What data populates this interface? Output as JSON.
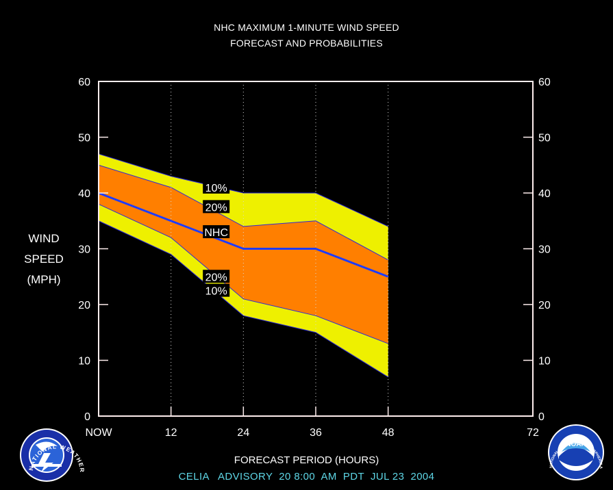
{
  "title_lines": [
    "NHC MAXIMUM 1-MINUTE WIND SPEED",
    "FORECAST AND PROBABILITIES"
  ],
  "ylabel_lines": [
    "WIND",
    "SPEED",
    "(MPH)"
  ],
  "xlabel": "FORECAST PERIOD (HOURS)",
  "advisory": "CELIA   ADVISORY  20 8:00  AM  PDT  JUL 23  2004",
  "logos": {
    "nws": {
      "text": "NATIONAL WEATHER SERVICE",
      "icon": "nws-logo"
    },
    "noaa": {
      "text": "NATIONAL OCEANIC AND ATMOSPHERIC ADMINISTRATION - U.S. DEPARTMENT OF COMMERCE",
      "label": "NOAA",
      "icon": "noaa-logo"
    }
  },
  "chart_data": {
    "type": "area",
    "x": [
      0,
      12,
      24,
      36,
      48
    ],
    "x_ticks": [
      0,
      12,
      24,
      36,
      48,
      72
    ],
    "x_tick_labels": [
      "NOW",
      "12",
      "24",
      "36",
      "48",
      "72"
    ],
    "xlim": [
      0,
      72
    ],
    "ylim": [
      0,
      60
    ],
    "y_ticks": [
      0,
      10,
      20,
      30,
      40,
      50,
      60
    ],
    "grid": "dotted vertical at 12, 24, 36, 48",
    "bands": [
      {
        "name": "10%",
        "upper": [
          47,
          43,
          40,
          40,
          34
        ],
        "lower": [
          35,
          29,
          18,
          15,
          7
        ],
        "color": "#eef000"
      },
      {
        "name": "20%",
        "upper": [
          45,
          41,
          34,
          35,
          28
        ],
        "lower": [
          38,
          32,
          21,
          18,
          13
        ],
        "color": "#ff7f00"
      }
    ],
    "series": [
      {
        "name": "NHC",
        "values": [
          40,
          35,
          30,
          30,
          25
        ],
        "color": "#1e3cff"
      }
    ],
    "band_labels": [
      {
        "text": "10%",
        "x": 17,
        "y": 41
      },
      {
        "text": "20%",
        "x": 17,
        "y": 37.5
      },
      {
        "text": "NHC",
        "x": 17,
        "y": 33
      },
      {
        "text": "20%",
        "x": 17,
        "y": 25
      },
      {
        "text": "10%",
        "x": 17,
        "y": 22.5
      }
    ],
    "colors": {
      "background": "#000000",
      "frame": "#ffeeee",
      "outer_band": "#eef000",
      "inner_band": "#ff7f00",
      "forecast_line": "#1e3cff",
      "advisory_text": "#5ed6e6"
    }
  }
}
